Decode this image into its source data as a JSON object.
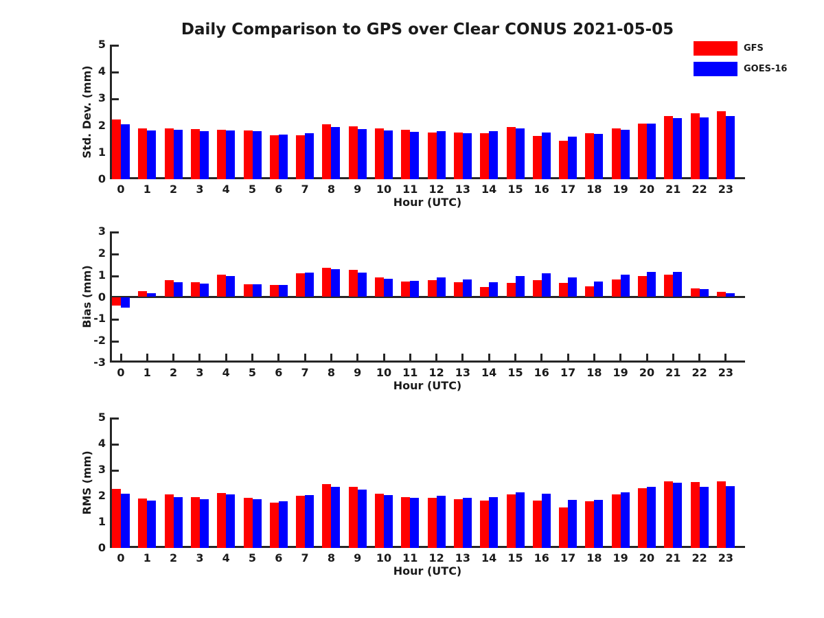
{
  "title": "Daily Comparison to GPS over Clear CONUS 2021-05-05",
  "legend": {
    "position": "top-right",
    "items": [
      {
        "label": "GFS",
        "color": "#ff0000"
      },
      {
        "label": "GOES-16",
        "color": "#0000ff"
      }
    ]
  },
  "colors": {
    "gfs": "#ff0000",
    "goes16": "#0000ff",
    "axis": "#262626",
    "text": "#1a1a1a",
    "background": "#ffffff"
  },
  "chart_data": [
    {
      "type": "bar",
      "title": "",
      "ylabel": "Std. Dev. (mm)",
      "xlabel": "Hour (UTC)",
      "ylim": [
        0,
        5
      ],
      "yticks": [
        0,
        1,
        2,
        3,
        4,
        5
      ],
      "grid": false,
      "legend_position": "top-right",
      "categories": [
        0,
        1,
        2,
        3,
        4,
        5,
        6,
        7,
        8,
        9,
        10,
        11,
        12,
        13,
        14,
        15,
        16,
        17,
        18,
        19,
        20,
        21,
        22,
        23
      ],
      "series": [
        {
          "name": "GFS",
          "color": "#ff0000",
          "values": [
            2.22,
            1.88,
            1.88,
            1.85,
            1.83,
            1.82,
            1.64,
            1.64,
            2.03,
            1.97,
            1.88,
            1.83,
            1.74,
            1.73,
            1.72,
            1.94,
            1.6,
            1.42,
            1.72,
            1.9,
            2.06,
            2.35,
            2.45,
            2.53
          ]
        },
        {
          "name": "GOES-16",
          "color": "#0000ff",
          "values": [
            2.03,
            1.8,
            1.84,
            1.78,
            1.81,
            1.78,
            1.67,
            1.72,
            1.95,
            1.86,
            1.82,
            1.75,
            1.78,
            1.71,
            1.78,
            1.9,
            1.73,
            1.58,
            1.69,
            1.84,
            2.07,
            2.27,
            2.3,
            2.35
          ]
        }
      ]
    },
    {
      "type": "bar",
      "title": "",
      "ylabel": "Bias (mm)",
      "xlabel": "Hour (UTC)",
      "ylim": [
        -3,
        3
      ],
      "yticks": [
        -3,
        -2,
        -1,
        0,
        1,
        2,
        3
      ],
      "grid": false,
      "zero_line": true,
      "categories": [
        0,
        1,
        2,
        3,
        4,
        5,
        6,
        7,
        8,
        9,
        10,
        11,
        12,
        13,
        14,
        15,
        16,
        17,
        18,
        19,
        20,
        21,
        22,
        23
      ],
      "series": [
        {
          "name": "GFS",
          "color": "#ff0000",
          "values": [
            -0.38,
            0.28,
            0.78,
            0.68,
            1.01,
            0.57,
            0.54,
            1.09,
            1.34,
            1.23,
            0.89,
            0.7,
            0.77,
            0.68,
            0.46,
            0.63,
            0.76,
            0.63,
            0.49,
            0.81,
            0.96,
            1.03,
            0.38,
            0.25
          ]
        },
        {
          "name": "GOES-16",
          "color": "#0000ff",
          "values": [
            -0.48,
            0.17,
            0.67,
            0.61,
            0.97,
            0.57,
            0.55,
            1.1,
            1.28,
            1.13,
            0.83,
            0.75,
            0.88,
            0.8,
            0.68,
            0.96,
            1.09,
            0.88,
            0.72,
            1.03,
            1.14,
            1.14,
            0.36,
            0.18
          ]
        }
      ]
    },
    {
      "type": "bar",
      "title": "",
      "ylabel": "RMS (mm)",
      "xlabel": "Hour (UTC)",
      "ylim": [
        0,
        5
      ],
      "yticks": [
        0,
        1,
        2,
        3,
        4,
        5
      ],
      "grid": false,
      "categories": [
        0,
        1,
        2,
        3,
        4,
        5,
        6,
        7,
        8,
        9,
        10,
        11,
        12,
        13,
        14,
        15,
        16,
        17,
        18,
        19,
        20,
        21,
        22,
        23
      ],
      "series": [
        {
          "name": "GFS",
          "color": "#ff0000",
          "values": [
            2.27,
            1.9,
            2.05,
            1.96,
            2.1,
            1.93,
            1.75,
            1.99,
            2.44,
            2.35,
            2.08,
            1.96,
            1.91,
            1.86,
            1.81,
            2.06,
            1.82,
            1.55,
            1.78,
            2.05,
            2.28,
            2.56,
            2.52,
            2.55
          ]
        },
        {
          "name": "GOES-16",
          "color": "#0000ff",
          "values": [
            2.09,
            1.82,
            1.96,
            1.88,
            2.05,
            1.88,
            1.78,
            2.03,
            2.34,
            2.23,
            2.03,
            1.93,
            1.99,
            1.92,
            1.95,
            2.13,
            2.07,
            1.84,
            1.83,
            2.13,
            2.35,
            2.5,
            2.34,
            2.38
          ]
        }
      ]
    }
  ]
}
